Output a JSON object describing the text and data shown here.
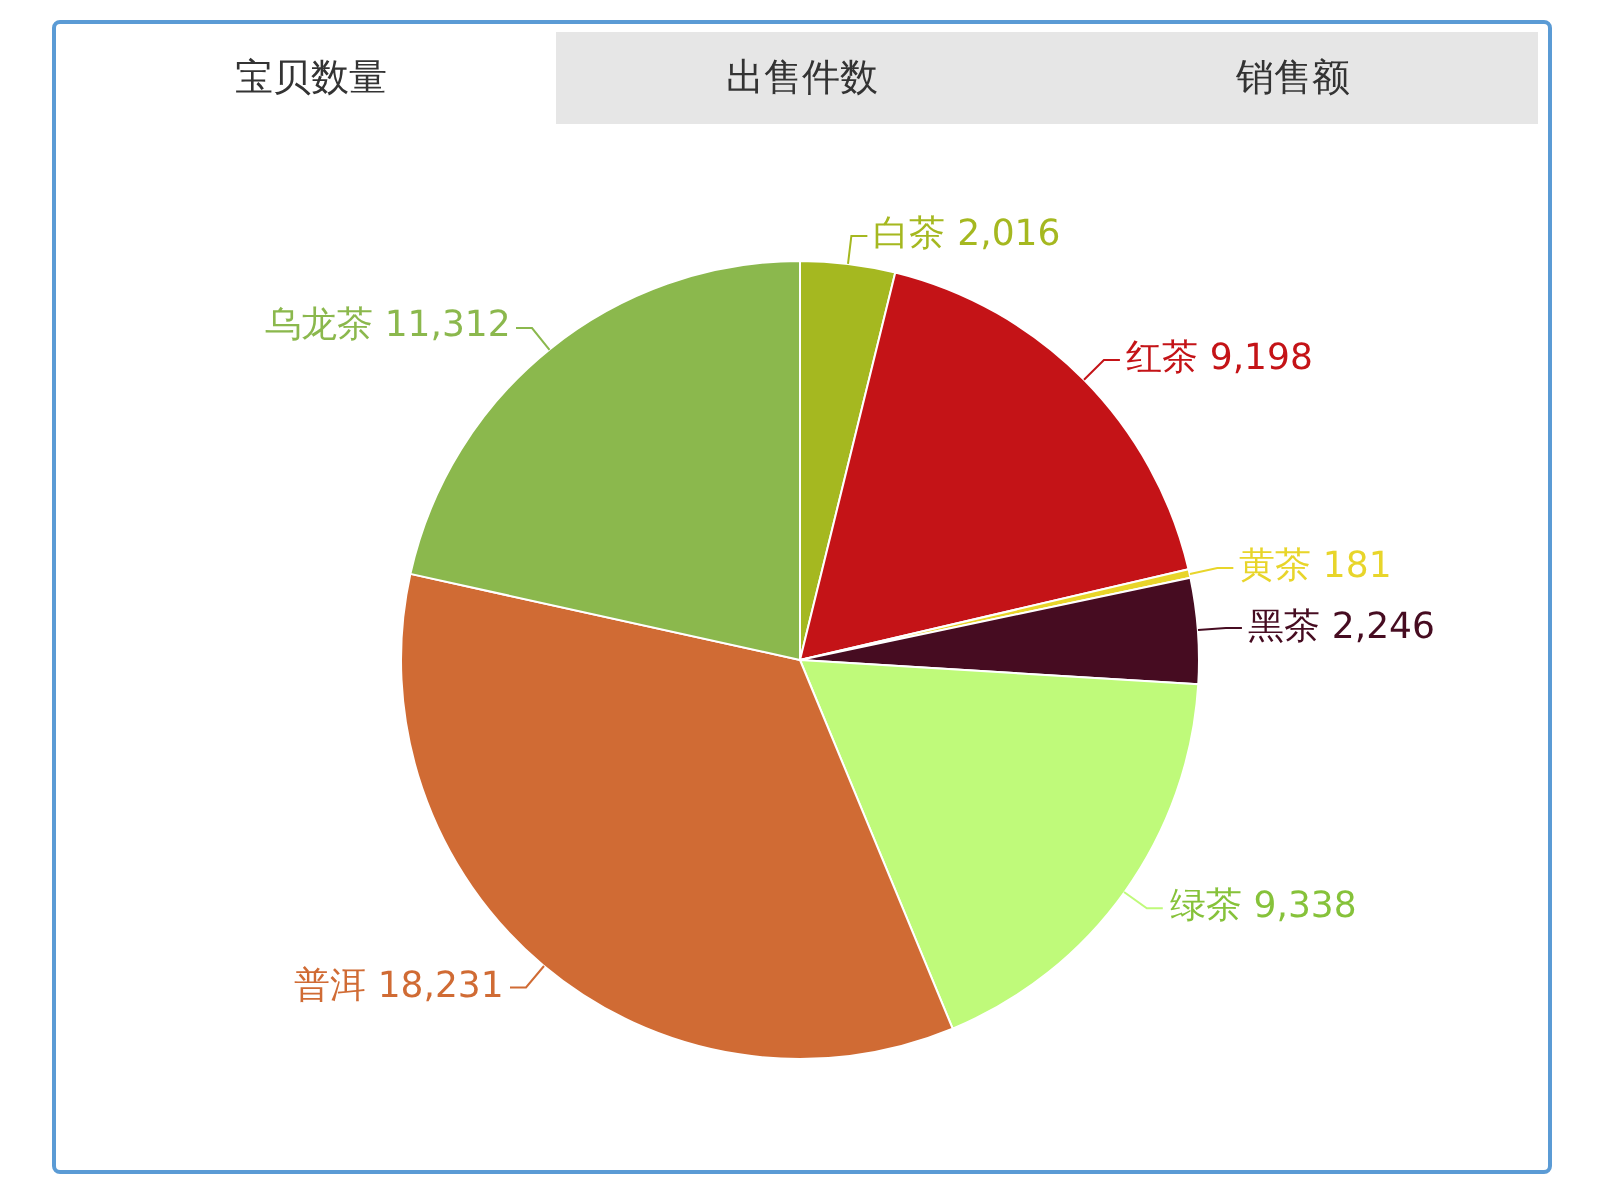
{
  "chart_data": {
    "type": "pie",
    "title": "宝贝数量",
    "annotations": [
      "出售件数",
      "销售额"
    ],
    "categories": [
      "白茶",
      "红茶",
      "黄茶",
      "黑茶",
      "绿茶",
      "普洱",
      "乌龙茶"
    ],
    "values": [
      2016,
      9198,
      181,
      2246,
      9338,
      18231,
      11312
    ],
    "colors": [
      "#a5b820",
      "#c41317",
      "#e8d52a",
      "#460c21",
      "#bffa7a",
      "#d06b34",
      "#8bb84d"
    ],
    "value_labels": [
      "2,016",
      "9,198",
      "181",
      "2,246",
      "9,338",
      "18,231",
      "11,312"
    ],
    "legend": false
  }
}
